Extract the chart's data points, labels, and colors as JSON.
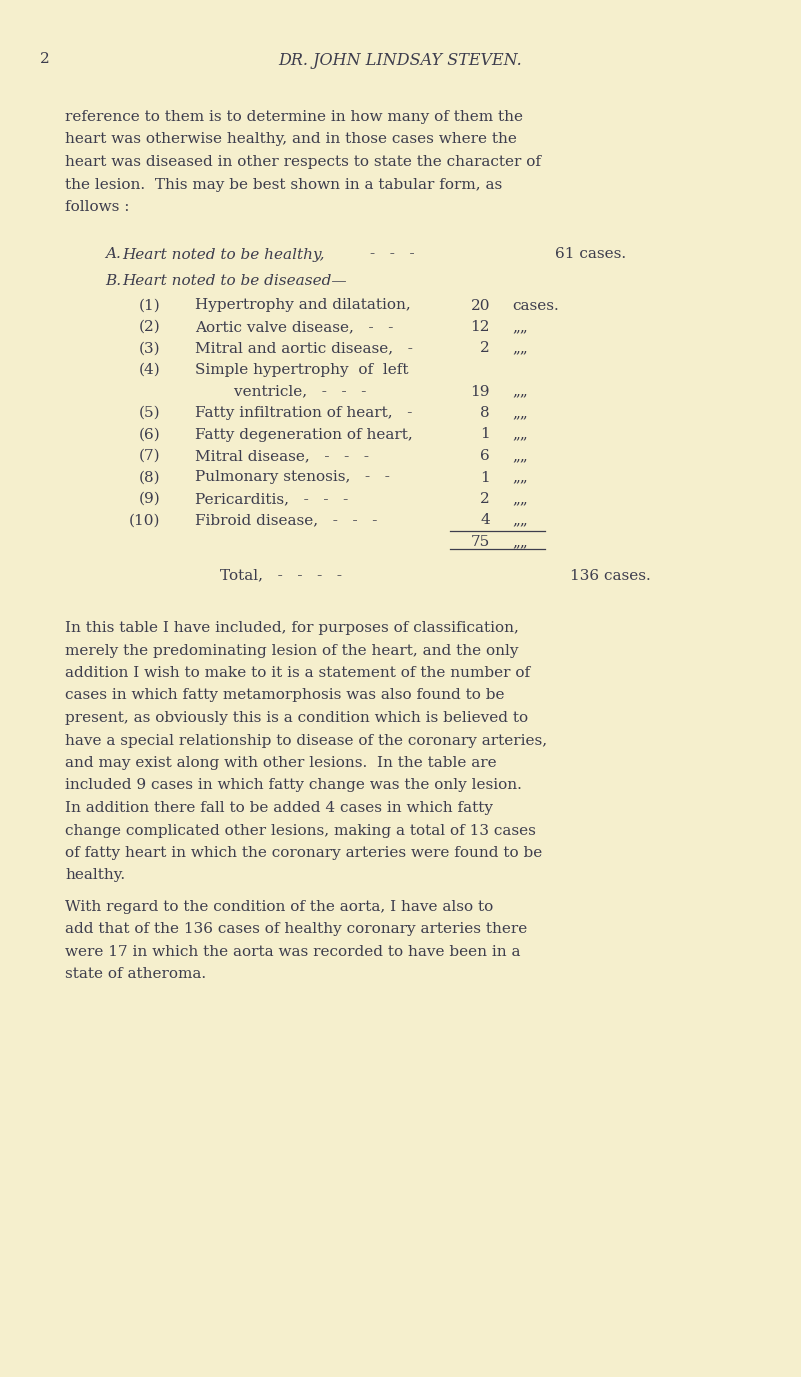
{
  "bg_color": "#f5efcd",
  "text_color": "#3d3d4d",
  "page_number": "2",
  "header": "DR. JOHN LINDSAY STEVEN.",
  "para1_lines": [
    "reference to them is to determine in how many of them the",
    "heart was otherwise healthy, and in those cases where the",
    "heart was diseased in other respects to state the character of",
    "the lesion.  This may be best shown in a tabular form, as",
    "follows :"
  ],
  "para2_lines": [
    "In this table I have included, for purposes of classification,",
    "merely the predominating lesion of the heart, and the only",
    "addition I wish to make to it is a statement of the number of",
    "cases in which fatty metamorphosis was also found to be",
    "present, as obviously this is a condition which is believed to",
    "have a special relationship to disease of the coronary arteries,",
    "and may exist along with other lesions.  In the table are",
    "included 9 cases in which fatty change was the only lesion.",
    "In addition there fall to be added 4 cases in which fatty",
    "change complicated other lesions, making a total of 13 cases",
    "of fatty heart in which the coronary arteries were found to be",
    "healthy."
  ],
  "para3_lines": [
    "With regard to the condition of the aorta, I have also to",
    "add that of the 136 cases of healthy coronary arteries there",
    "were 17 in which the aorta was recorded to have been in a",
    "state of atheroma."
  ]
}
